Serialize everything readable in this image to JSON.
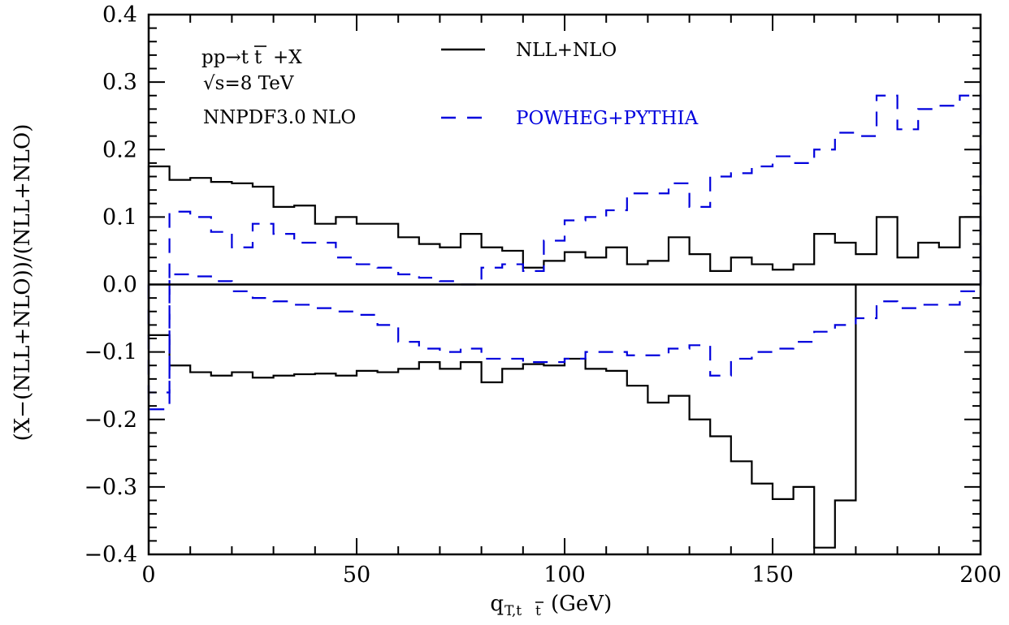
{
  "chart_data": {
    "type": "line",
    "xlabel_main": "q",
    "xlabel_sub": "T,t",
    "xlabel_sub_bar": "t",
    "xlabel_unit": "(GeV)",
    "ylabel": "(X−(NLL+NLO))/(NLL+NLO)",
    "xlim": [
      0,
      200
    ],
    "ylim": [
      -0.4,
      0.4
    ],
    "x_ticks": [
      "0",
      "50",
      "100",
      "150",
      "200"
    ],
    "y_ticks": [
      "−0.4",
      "−0.3",
      "−0.2",
      "−0.1",
      "0.0",
      "0.1",
      "0.2",
      "0.3",
      "0.4"
    ],
    "grid": false,
    "annotations": {
      "process_main": "pp→t",
      "process_bar": "t",
      "process_tail": "+X",
      "energy": "√s=8 TeV",
      "pdf": "NNPDF3.0 NLO"
    },
    "legend": {
      "placement": "top-center",
      "entries": [
        {
          "label": "NLL+NLO",
          "color": "#000000",
          "style": "solid"
        },
        {
          "label": "POWHEG+PYTHIA",
          "color": "#0000dd",
          "style": "dashed"
        }
      ]
    },
    "bin_edges": [
      0,
      5,
      10,
      15,
      20,
      25,
      30,
      35,
      40,
      45,
      50,
      55,
      60,
      65,
      70,
      75,
      80,
      85,
      90,
      95,
      100,
      105,
      110,
      115,
      120,
      125,
      130,
      135,
      140,
      145,
      150,
      155,
      160,
      165,
      170,
      175,
      180,
      185,
      190,
      195,
      200
    ],
    "series": [
      {
        "name": "NLL+NLO",
        "band": "upper",
        "color": "#000000",
        "style": "solid",
        "values": [
          0.175,
          0.155,
          0.158,
          0.152,
          0.15,
          0.145,
          0.115,
          0.117,
          0.09,
          0.1,
          0.09,
          0.09,
          0.07,
          0.06,
          0.055,
          0.075,
          0.055,
          0.05,
          0.025,
          0.035,
          0.048,
          0.04,
          0.055,
          0.03,
          0.035,
          0.07,
          0.045,
          0.02,
          0.04,
          0.03,
          0.022,
          0.03,
          0.075,
          0.062,
          0.045,
          0.1,
          0.04,
          0.062,
          0.055,
          0.1
        ]
      },
      {
        "name": "NLL+NLO",
        "band": "lower",
        "color": "#000000",
        "style": "solid",
        "values": [
          -0.075,
          -0.12,
          -0.13,
          -0.135,
          -0.13,
          -0.138,
          -0.135,
          -0.133,
          -0.132,
          -0.135,
          -0.128,
          -0.13,
          -0.125,
          -0.115,
          -0.125,
          -0.115,
          -0.145,
          -0.125,
          -0.118,
          -0.12,
          -0.11,
          -0.125,
          -0.128,
          -0.15,
          -0.175,
          -0.165,
          -0.2,
          -0.225,
          -0.262,
          -0.295,
          -0.318,
          -0.3,
          -0.39,
          -0.32,
          null,
          null,
          null,
          null,
          null,
          null
        ]
      },
      {
        "name": "POWHEG+PYTHIA",
        "band": "upper",
        "color": "#0000dd",
        "style": "dashed",
        "values": [
          -0.185,
          0.108,
          0.1,
          0.078,
          0.055,
          0.09,
          0.075,
          0.062,
          0.062,
          0.04,
          0.03,
          0.025,
          0.015,
          0.01,
          0.005,
          0.0,
          0.025,
          0.03,
          0.02,
          0.065,
          0.095,
          0.1,
          0.11,
          0.135,
          0.135,
          0.15,
          0.115,
          0.16,
          0.165,
          0.175,
          0.19,
          0.18,
          0.2,
          0.225,
          0.22,
          0.28,
          0.23,
          0.26,
          0.265,
          0.28
        ]
      },
      {
        "name": "POWHEG+PYTHIA",
        "band": "lower",
        "color": "#0000dd",
        "style": "dashed",
        "values": [
          -0.16,
          0.015,
          0.012,
          0.005,
          -0.01,
          -0.02,
          -0.025,
          -0.03,
          -0.035,
          -0.04,
          -0.045,
          -0.06,
          -0.085,
          -0.095,
          -0.1,
          -0.095,
          -0.11,
          -0.11,
          -0.115,
          -0.115,
          -0.11,
          -0.1,
          -0.1,
          -0.105,
          -0.105,
          -0.095,
          -0.09,
          -0.135,
          -0.11,
          -0.1,
          -0.095,
          -0.085,
          -0.07,
          -0.06,
          -0.05,
          -0.025,
          -0.035,
          -0.03,
          -0.03,
          -0.01
        ]
      }
    ]
  }
}
